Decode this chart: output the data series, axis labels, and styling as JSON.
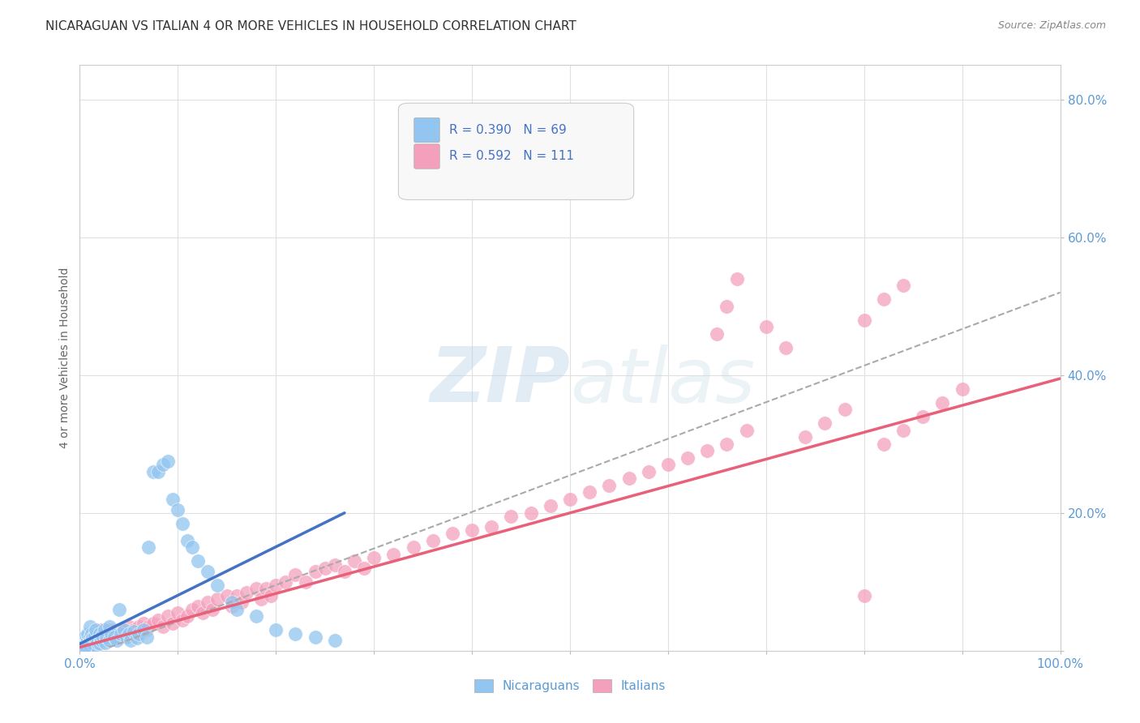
{
  "title": "NICARAGUAN VS ITALIAN 4 OR MORE VEHICLES IN HOUSEHOLD CORRELATION CHART",
  "source": "Source: ZipAtlas.com",
  "ylabel": "4 or more Vehicles in Household",
  "xlim": [
    0.0,
    1.0
  ],
  "ylim": [
    0.0,
    0.85
  ],
  "nicaraguan_color": "#92C5F0",
  "italian_color": "#F4A0BC",
  "nicaraguan_line_color": "#4472C4",
  "italian_line_color": "#E8607A",
  "dash_line_color": "#AAAAAA",
  "nicaraguan_R": 0.39,
  "nicaraguan_N": 69,
  "italian_R": 0.592,
  "italian_N": 111,
  "watermark": "ZIPatlas",
  "background_color": "#FFFFFF",
  "grid_color": "#E0E0E0",
  "title_color": "#333333",
  "source_color": "#888888",
  "axis_label_color": "#5B9BD5",
  "ylabel_color": "#666666",
  "legend_text_color": "#4472C4",
  "title_fontsize": 11,
  "axis_tick_fontsize": 11,
  "ylabel_fontsize": 10,
  "nic_line_x0": 0.0,
  "nic_line_x1": 0.27,
  "nic_line_y0": 0.01,
  "nic_line_y1": 0.2,
  "ita_line_x0": 0.0,
  "ita_line_x1": 1.0,
  "ita_line_y0": 0.005,
  "ita_line_y1": 0.395,
  "dash_line_x0": 0.03,
  "dash_line_x1": 1.0,
  "dash_line_y0": 0.005,
  "dash_line_y1": 0.52,
  "nic_pts_x": [
    0.002,
    0.003,
    0.004,
    0.005,
    0.005,
    0.006,
    0.007,
    0.007,
    0.008,
    0.008,
    0.009,
    0.01,
    0.01,
    0.01,
    0.011,
    0.012,
    0.012,
    0.013,
    0.014,
    0.015,
    0.015,
    0.016,
    0.017,
    0.018,
    0.02,
    0.02,
    0.021,
    0.022,
    0.023,
    0.025,
    0.026,
    0.027,
    0.03,
    0.03,
    0.032,
    0.035,
    0.038,
    0.04,
    0.042,
    0.045,
    0.048,
    0.05,
    0.052,
    0.055,
    0.058,
    0.06,
    0.065,
    0.068,
    0.07,
    0.075,
    0.08,
    0.085,
    0.09,
    0.095,
    0.1,
    0.105,
    0.11,
    0.115,
    0.12,
    0.13,
    0.14,
    0.155,
    0.16,
    0.18,
    0.2,
    0.22,
    0.24,
    0.26,
    0.005
  ],
  "nic_pts_y": [
    0.01,
    0.015,
    0.005,
    0.02,
    0.008,
    0.012,
    0.018,
    0.006,
    0.015,
    0.025,
    0.01,
    0.02,
    0.035,
    0.008,
    0.015,
    0.025,
    0.012,
    0.018,
    0.01,
    0.022,
    0.008,
    0.03,
    0.015,
    0.012,
    0.025,
    0.01,
    0.018,
    0.015,
    0.022,
    0.03,
    0.012,
    0.02,
    0.035,
    0.015,
    0.025,
    0.02,
    0.015,
    0.06,
    0.025,
    0.03,
    0.02,
    0.025,
    0.015,
    0.028,
    0.018,
    0.025,
    0.03,
    0.02,
    0.15,
    0.26,
    0.26,
    0.27,
    0.275,
    0.22,
    0.205,
    0.185,
    0.16,
    0.15,
    0.13,
    0.115,
    0.095,
    0.07,
    0.06,
    0.05,
    0.03,
    0.025,
    0.02,
    0.015,
    0.005
  ],
  "ita_pts_x": [
    0.002,
    0.004,
    0.005,
    0.006,
    0.007,
    0.008,
    0.009,
    0.01,
    0.01,
    0.012,
    0.013,
    0.014,
    0.015,
    0.016,
    0.017,
    0.018,
    0.019,
    0.02,
    0.022,
    0.024,
    0.025,
    0.026,
    0.028,
    0.03,
    0.032,
    0.034,
    0.036,
    0.038,
    0.04,
    0.042,
    0.045,
    0.048,
    0.05,
    0.052,
    0.055,
    0.058,
    0.06,
    0.062,
    0.065,
    0.068,
    0.07,
    0.075,
    0.08,
    0.085,
    0.09,
    0.095,
    0.1,
    0.105,
    0.11,
    0.115,
    0.12,
    0.125,
    0.13,
    0.135,
    0.14,
    0.15,
    0.155,
    0.16,
    0.165,
    0.17,
    0.18,
    0.185,
    0.19,
    0.195,
    0.2,
    0.21,
    0.22,
    0.23,
    0.24,
    0.25,
    0.26,
    0.27,
    0.28,
    0.29,
    0.3,
    0.32,
    0.34,
    0.36,
    0.38,
    0.4,
    0.42,
    0.44,
    0.46,
    0.48,
    0.5,
    0.52,
    0.54,
    0.56,
    0.58,
    0.6,
    0.62,
    0.64,
    0.66,
    0.68,
    0.7,
    0.72,
    0.74,
    0.76,
    0.78,
    0.8,
    0.82,
    0.84,
    0.86,
    0.88,
    0.9,
    0.65,
    0.66,
    0.67,
    0.8,
    0.82,
    0.84
  ],
  "ita_pts_y": [
    0.01,
    0.015,
    0.008,
    0.02,
    0.012,
    0.018,
    0.01,
    0.025,
    0.015,
    0.02,
    0.012,
    0.018,
    0.025,
    0.015,
    0.02,
    0.012,
    0.018,
    0.025,
    0.03,
    0.02,
    0.025,
    0.015,
    0.022,
    0.03,
    0.02,
    0.025,
    0.018,
    0.025,
    0.03,
    0.02,
    0.028,
    0.022,
    0.035,
    0.025,
    0.03,
    0.022,
    0.035,
    0.025,
    0.04,
    0.03,
    0.035,
    0.04,
    0.045,
    0.035,
    0.05,
    0.04,
    0.055,
    0.045,
    0.05,
    0.06,
    0.065,
    0.055,
    0.07,
    0.06,
    0.075,
    0.08,
    0.065,
    0.08,
    0.07,
    0.085,
    0.09,
    0.075,
    0.09,
    0.08,
    0.095,
    0.1,
    0.11,
    0.1,
    0.115,
    0.12,
    0.125,
    0.115,
    0.13,
    0.12,
    0.135,
    0.14,
    0.15,
    0.16,
    0.17,
    0.175,
    0.18,
    0.195,
    0.2,
    0.21,
    0.22,
    0.23,
    0.24,
    0.25,
    0.26,
    0.27,
    0.28,
    0.29,
    0.3,
    0.32,
    0.47,
    0.44,
    0.31,
    0.33,
    0.35,
    0.08,
    0.3,
    0.32,
    0.34,
    0.36,
    0.38,
    0.46,
    0.5,
    0.54,
    0.48,
    0.51,
    0.53
  ]
}
